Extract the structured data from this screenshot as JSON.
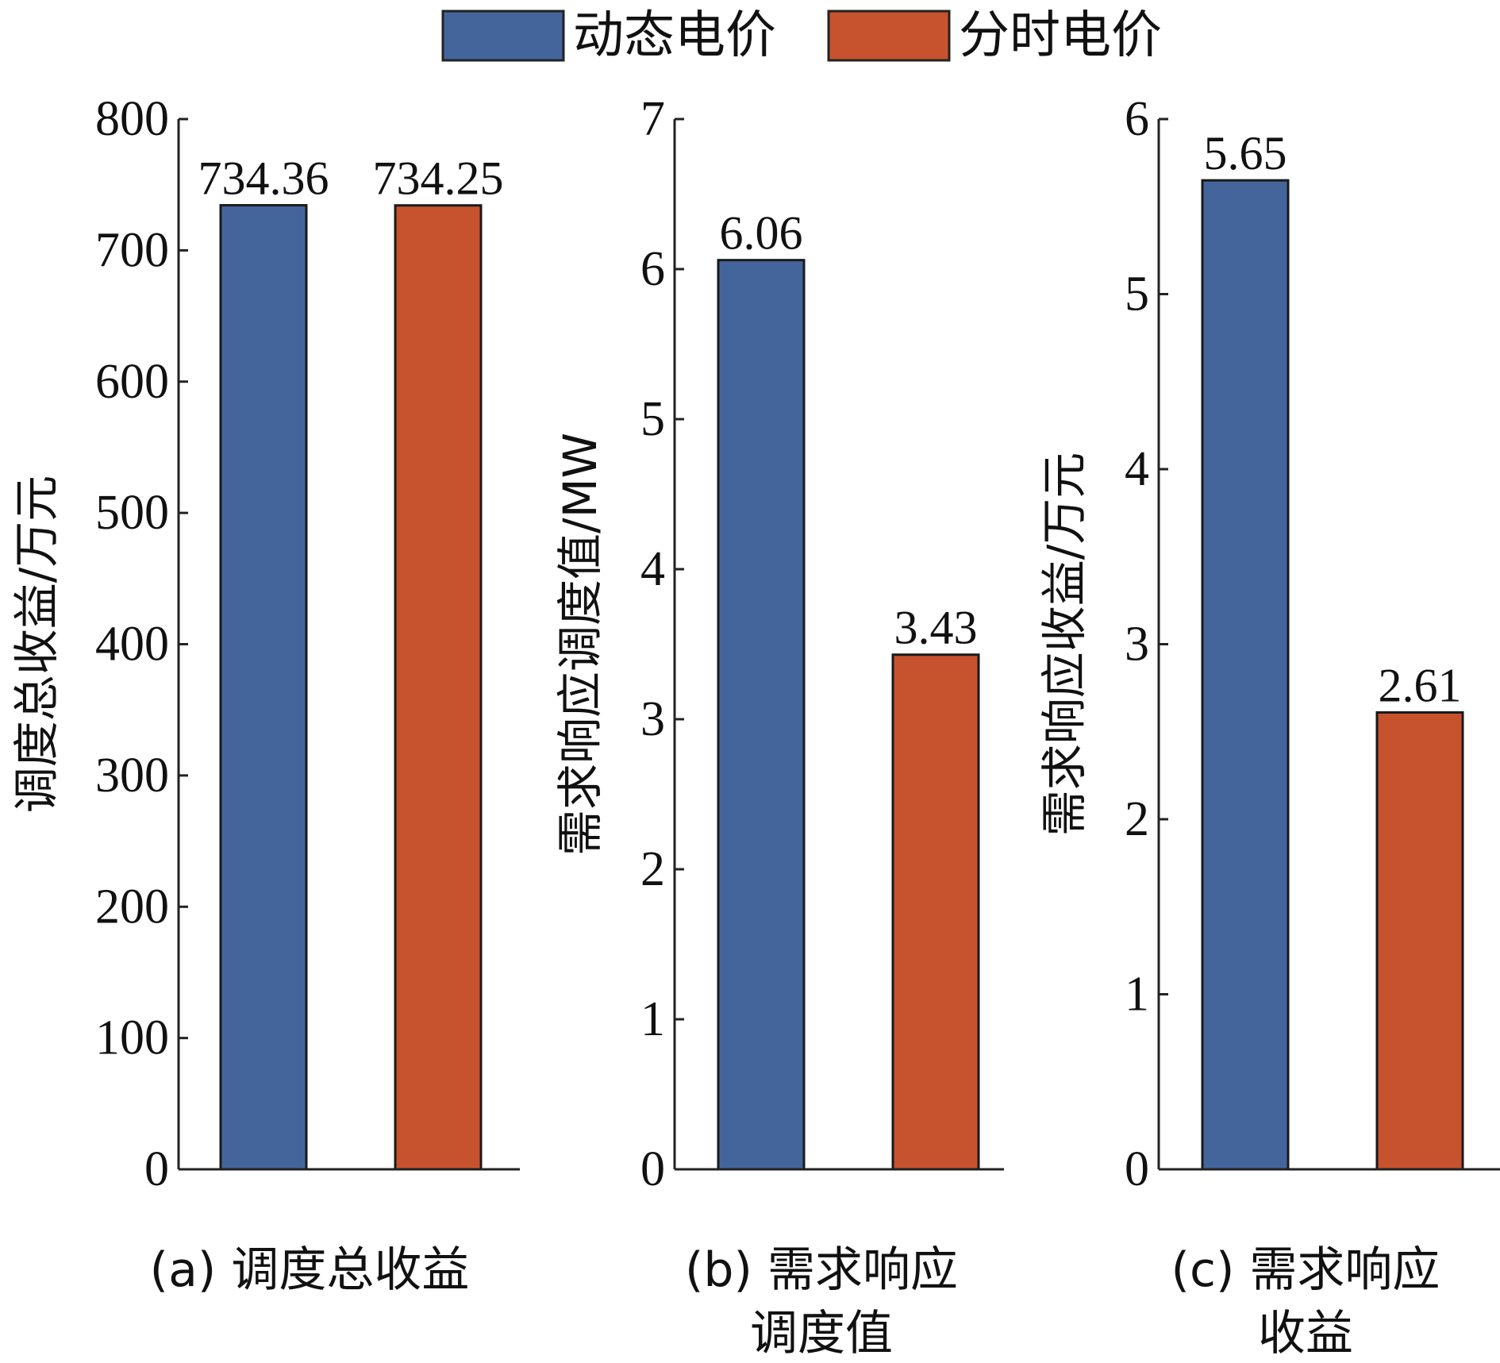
{
  "legend": {
    "position": "top-center",
    "entries": [
      {
        "name": "动态电价",
        "color": "#44659C"
      },
      {
        "name": "分时电价",
        "color": "#C7522E"
      }
    ]
  },
  "chart_data": [
    {
      "type": "bar",
      "caption": [
        "(a) 调度总收益"
      ],
      "ylabel": "调度总收益/万元",
      "ylim": [
        0,
        800
      ],
      "yticks": [
        0,
        100,
        200,
        300,
        400,
        500,
        600,
        700,
        800
      ],
      "categories": [
        "动态电价",
        "分时电价"
      ],
      "values": [
        734.36,
        734.25
      ],
      "data_labels": [
        "734.36",
        "734.25"
      ],
      "grid": false
    },
    {
      "type": "bar",
      "caption": [
        "(b) 需求响应",
        "调度值"
      ],
      "ylabel": "需求响应调度值/MW",
      "ylim": [
        0,
        7
      ],
      "yticks": [
        0,
        1,
        2,
        3,
        4,
        5,
        6,
        7
      ],
      "categories": [
        "动态电价",
        "分时电价"
      ],
      "values": [
        6.06,
        3.43
      ],
      "data_labels": [
        "6.06",
        "3.43"
      ],
      "grid": false
    },
    {
      "type": "bar",
      "caption": [
        "(c) 需求响应",
        "收益"
      ],
      "ylabel": "需求响应收益/万元",
      "ylim": [
        0,
        6
      ],
      "yticks": [
        0,
        1,
        2,
        3,
        4,
        5,
        6
      ],
      "categories": [
        "动态电价",
        "分时电价"
      ],
      "values": [
        5.65,
        2.61
      ],
      "data_labels": [
        "5.65",
        "2.61"
      ],
      "grid": false
    }
  ]
}
